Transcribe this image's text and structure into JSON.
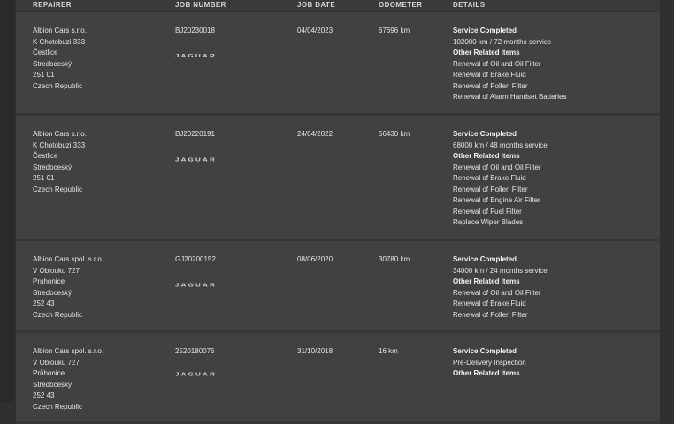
{
  "header": {
    "repairer": "REPAIRER",
    "job_number": "JOB NUMBER",
    "job_date": "JOB DATE",
    "odometer": "ODOMETER",
    "details": "DETAILS"
  },
  "brand_logo": "JAGUAR",
  "records": [
    {
      "repairer": [
        "Albion Cars s.r.o.",
        "K Chotobuzi 333",
        "Čestlice",
        "Stredoceský",
        "251 01",
        "Czech Republic"
      ],
      "job_number": "BJ20230018",
      "job_date": "04/04/2023",
      "odometer": "67696 km",
      "service_heading": "Service Completed",
      "service": "102000 km / 72 months service",
      "other_heading": "Other Related Items",
      "items": [
        "Renewal of Oil and Oil Filter",
        "Renewal of Brake Fluid",
        "Renewal of Pollen Filter",
        "Renewal of Alarm Handset Batteries"
      ]
    },
    {
      "repairer": [
        "Albion Cars s.r.o.",
        "K Chotobuzi 333",
        "Čestlice",
        "Stredoceský",
        "251 01",
        "Czech Republic"
      ],
      "job_number": "BJ20220191",
      "job_date": "24/04/2022",
      "odometer": "56430 km",
      "service_heading": "Service Completed",
      "service": "68000 km / 48 months service",
      "other_heading": "Other Related Items",
      "items": [
        "Renewal of Oil and Oil Filter",
        "Renewal of Brake Fluid",
        "Renewal of Pollen Filter",
        "Renewal of Engine Air Filter",
        "Renewal of Fuel Filter",
        "Replace Wiper Blades"
      ]
    },
    {
      "repairer": [
        "Albion Cars spol. s.r.o.",
        "V Oblouku 727",
        "Pruhonice",
        "Stredoceský",
        "252 43",
        "Czech Republic"
      ],
      "job_number": "GJ20200152",
      "job_date": "08/06/2020",
      "odometer": "30780 km",
      "service_heading": "Service Completed",
      "service": "34000 km / 24 months service",
      "other_heading": "Other Related Items",
      "items": [
        "Renewal of Oil and Oil Filter",
        "Renewal of Brake Fluid",
        "Renewal of Pollen Filter"
      ]
    },
    {
      "repairer": [
        "Albion Cars spol. s.r.o.",
        "V Oblouku 727",
        "Průhonice",
        "Středočeský",
        "252 43",
        "Czech Republic"
      ],
      "job_number": "2520180076",
      "job_date": "31/10/2018",
      "odometer": "16 km",
      "service_heading": "Service Completed",
      "service": "Pre-Delivery Inspection",
      "other_heading": "Other Related Items",
      "items": []
    }
  ]
}
